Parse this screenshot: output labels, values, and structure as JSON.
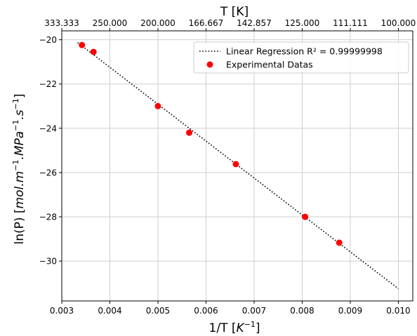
{
  "chart_data": {
    "type": "scatter",
    "x_axis": {
      "label_main": "1/T [",
      "label_italic": "K",
      "label_sup": "−1",
      "label_end": "]",
      "lim": [
        0.003,
        0.0103
      ],
      "ticks": [
        0.003,
        0.004,
        0.005,
        0.006,
        0.007,
        0.008,
        0.009,
        0.01
      ],
      "tick_labels": [
        "0.003",
        "0.004",
        "0.005",
        "0.006",
        "0.007",
        "0.008",
        "0.009",
        "0.010"
      ]
    },
    "y_axis": {
      "label_main": "ln(P) [",
      "label_math": "mol.m",
      "label_sup1": "−1",
      "label_math2": ".MPa",
      "label_sup2": "−1",
      "label_math3": ".s",
      "label_sup3": "−1",
      "label_end": "]",
      "lim": [
        -31.8,
        -19.6
      ],
      "ticks": [
        -20,
        -22,
        -24,
        -26,
        -28,
        -30
      ],
      "tick_labels": [
        "−20",
        "−22",
        "−24",
        "−26",
        "−28",
        "−30"
      ]
    },
    "top_axis": {
      "label": "T [K]",
      "tick_positions": [
        0.003,
        0.004,
        0.005,
        0.006,
        0.007,
        0.008,
        0.009,
        0.01
      ],
      "tick_labels": [
        "333.333",
        "250.000",
        "200.000",
        "166.667",
        "142.857",
        "125.000",
        "111.111",
        "100.000"
      ]
    },
    "grid": true,
    "legend": {
      "placement": "top-right",
      "entries": [
        {
          "label": "Linear Regression R² = 0.99999998",
          "style": "dotted-line",
          "color": "#000000"
        },
        {
          "label": "Experimental Datas",
          "style": "marker",
          "color": "#ff0000"
        }
      ]
    },
    "series": [
      {
        "name": "Linear Regression R² = 0.99999998",
        "kind": "line",
        "color": "#000000",
        "x": [
          0.00333,
          0.01
        ],
        "y": [
          -20.13,
          -31.25
        ]
      },
      {
        "name": "Experimental Datas",
        "kind": "scatter",
        "color": "#ff0000",
        "x": [
          0.00342,
          0.00366,
          0.005,
          0.00565,
          0.00662,
          0.00806,
          0.00877
        ],
        "y": [
          -20.24,
          -20.55,
          -23.0,
          -24.2,
          -25.62,
          -28.0,
          -29.17
        ]
      }
    ]
  }
}
